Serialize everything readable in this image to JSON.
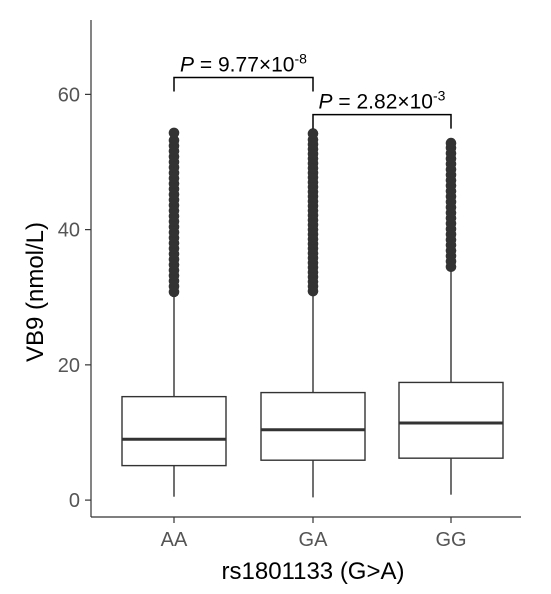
{
  "chart_data": {
    "type": "boxplot",
    "xlabel": "rs1801133 (G>A)",
    "ylabel": "VB9 (nmol/L)",
    "categories": [
      "AA",
      "GA",
      "GG"
    ],
    "ylim": [
      -2.5,
      71
    ],
    "yticks": [
      0,
      20,
      40,
      60
    ],
    "grid": false,
    "boxes": [
      {
        "category": "AA",
        "whisker_low": 0.5,
        "q1": 5.1,
        "median": 9.0,
        "q3": 15.3,
        "whisker_high": 30.3,
        "outliers": [
          30.8,
          31.6,
          32.4,
          33.2,
          34.0,
          34.8,
          35.6,
          36.4,
          37.2,
          38.0,
          38.8,
          39.6,
          40.4,
          41.2,
          42.0,
          42.8,
          43.6,
          44.4,
          45.2,
          46.0,
          46.8,
          47.6,
          48.4,
          49.2,
          50.0,
          50.8,
          51.6,
          52.4,
          53.2,
          54.3
        ]
      },
      {
        "category": "GA",
        "whisker_low": 0.4,
        "q1": 5.9,
        "median": 10.4,
        "q3": 15.9,
        "whisker_high": 30.8,
        "outliers": [
          30.9,
          31.6,
          32.3,
          33.0,
          33.7,
          34.4,
          35.1,
          35.8,
          36.5,
          37.2,
          37.9,
          38.6,
          39.3,
          40.0,
          40.7,
          41.4,
          42.1,
          42.8,
          43.5,
          44.2,
          44.9,
          45.6,
          46.3,
          47.0,
          47.7,
          48.4,
          49.1,
          49.8,
          50.5,
          51.2,
          51.9,
          52.6,
          53.3,
          54.2
        ]
      },
      {
        "category": "GG",
        "whisker_low": 0.8,
        "q1": 6.2,
        "median": 11.4,
        "q3": 17.4,
        "whisker_high": 34.0,
        "outliers": [
          34.5,
          35.3,
          36.1,
          36.9,
          37.7,
          38.5,
          39.3,
          40.1,
          40.9,
          41.7,
          42.5,
          43.3,
          44.1,
          44.9,
          45.7,
          46.5,
          47.3,
          48.1,
          48.9,
          49.7,
          50.5,
          51.3,
          52.1,
          52.8
        ]
      }
    ],
    "comparisons": [
      {
        "from": "AA",
        "to": "GA",
        "y": 62.5,
        "p_prefix": "P",
        "p_text": " = 9.77×10",
        "p_exp": "-8"
      },
      {
        "from": "GA",
        "to": "GG",
        "y": 57.0,
        "p_prefix": "P",
        "p_text": " = 2.82×10",
        "p_exp": "-3"
      }
    ],
    "colors": {
      "box_fill": "#ffffff",
      "stroke": "#333333",
      "outlier": "#333333",
      "tick_text": "#555555"
    }
  }
}
